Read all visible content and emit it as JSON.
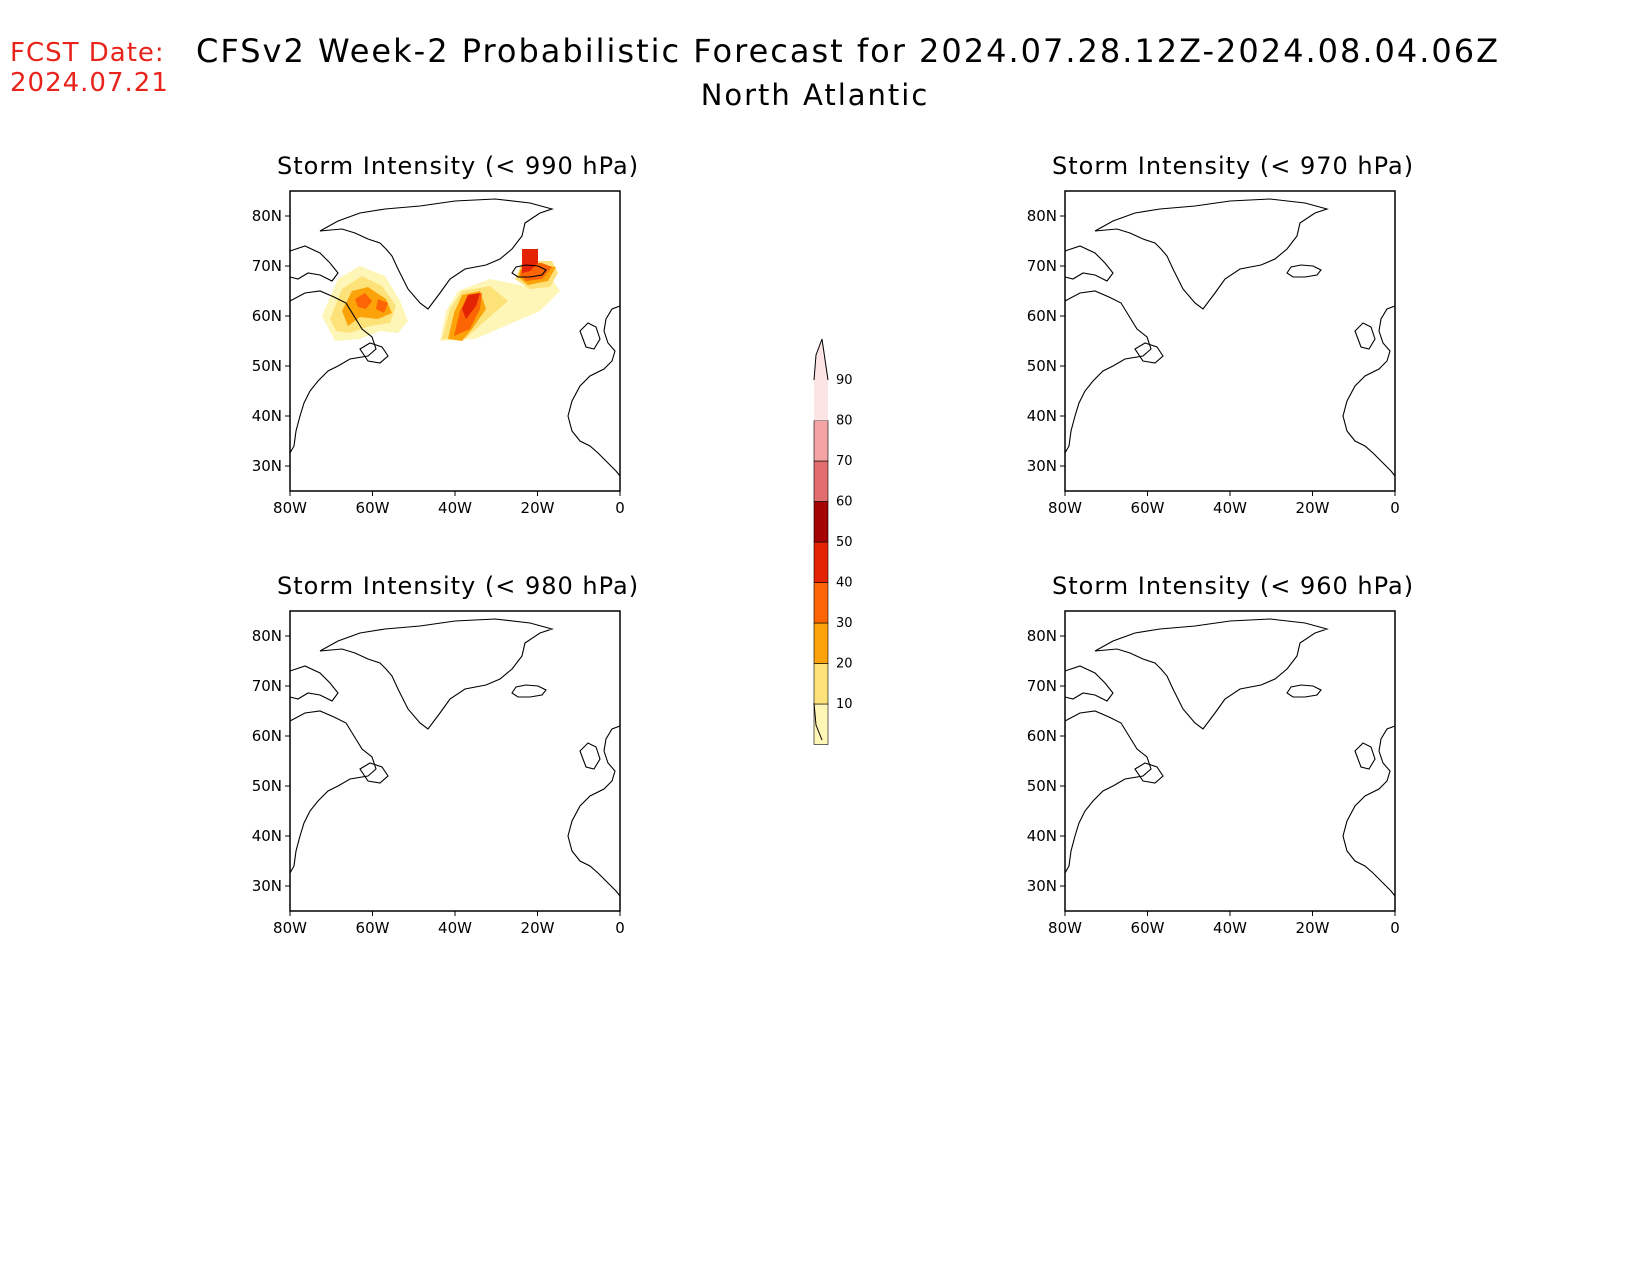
{
  "header": {
    "fcst_label": "FCST Date:",
    "fcst_date": "2024.07.21",
    "title": "CFSv2 Week-2 Probabilistic Forecast for 2024.07.28.12Z-2024.08.04.06Z",
    "region": "North Atlantic"
  },
  "axes": {
    "lat_labels": [
      "30N",
      "40N",
      "50N",
      "60N",
      "70N",
      "80N"
    ],
    "lon_labels": [
      "80W",
      "60W",
      "40W",
      "20W",
      "0"
    ]
  },
  "panels": [
    {
      "title": "Storm Intensity (< 990 hPa)",
      "has_data": true
    },
    {
      "title": "Storm Intensity (< 970 hPa)",
      "has_data": false
    },
    {
      "title": "Storm Intensity (< 980 hPa)",
      "has_data": false
    },
    {
      "title": "Storm Intensity (< 960 hPa)",
      "has_data": false
    }
  ],
  "colorbar": {
    "levels": [
      "10",
      "20",
      "30",
      "40",
      "50",
      "60",
      "70",
      "80",
      "90"
    ],
    "colors": [
      "#fef6b6",
      "#fde27a",
      "#fca30a",
      "#fc6404",
      "#e42204",
      "#a40404",
      "#e36d6d",
      "#f4a4a4",
      "#fde4e4"
    ]
  }
}
